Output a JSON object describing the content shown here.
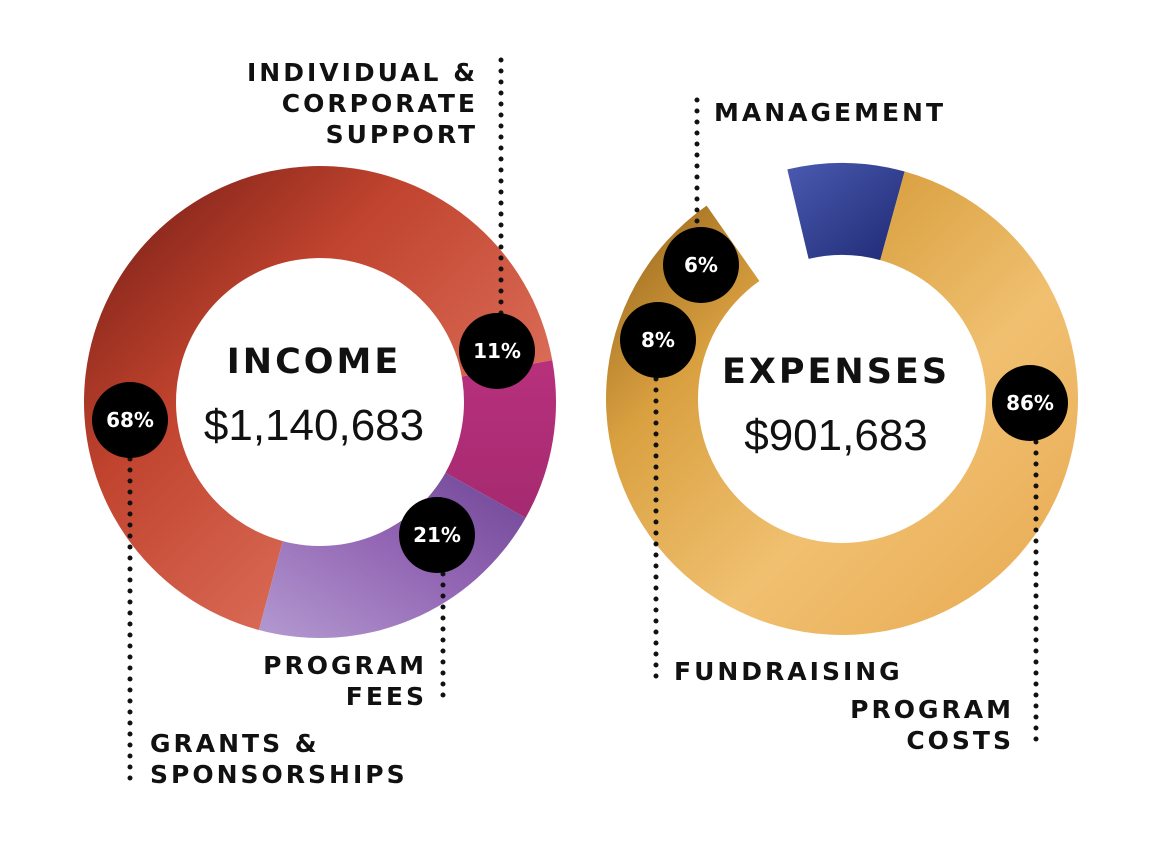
{
  "chart_data": [
    {
      "type": "pie",
      "title": "INCOME",
      "total": "$1,140,683",
      "slices": [
        {
          "label_lines": [
            "GRANTS &",
            "SPONSORSHIPS"
          ],
          "value": 68,
          "display": "68%",
          "color": "#c0432e"
        },
        {
          "label_lines": [
            "INDIVIDUAL &",
            "CORPORATE",
            "SUPPORT"
          ],
          "value": 11,
          "display": "11%",
          "color": "#b03078"
        },
        {
          "label_lines": [
            "PROGRAM",
            "FEES"
          ],
          "value": 21,
          "display": "21%",
          "color": "#8a5aa8"
        }
      ]
    },
    {
      "type": "pie",
      "title": "EXPENSES",
      "total": "$901,683",
      "slices": [
        {
          "label_lines": [
            "MANAGEMENT"
          ],
          "value": 6,
          "display": "6%",
          "color": "#ffffff"
        },
        {
          "label_lines": [
            "FUNDRAISING"
          ],
          "value": 8,
          "display": "8%",
          "color": "#2e3a8c"
        },
        {
          "label_lines": [
            "PROGRAM",
            "COSTS"
          ],
          "value": 86,
          "display": "86%",
          "color": "#d9a040"
        }
      ]
    }
  ]
}
